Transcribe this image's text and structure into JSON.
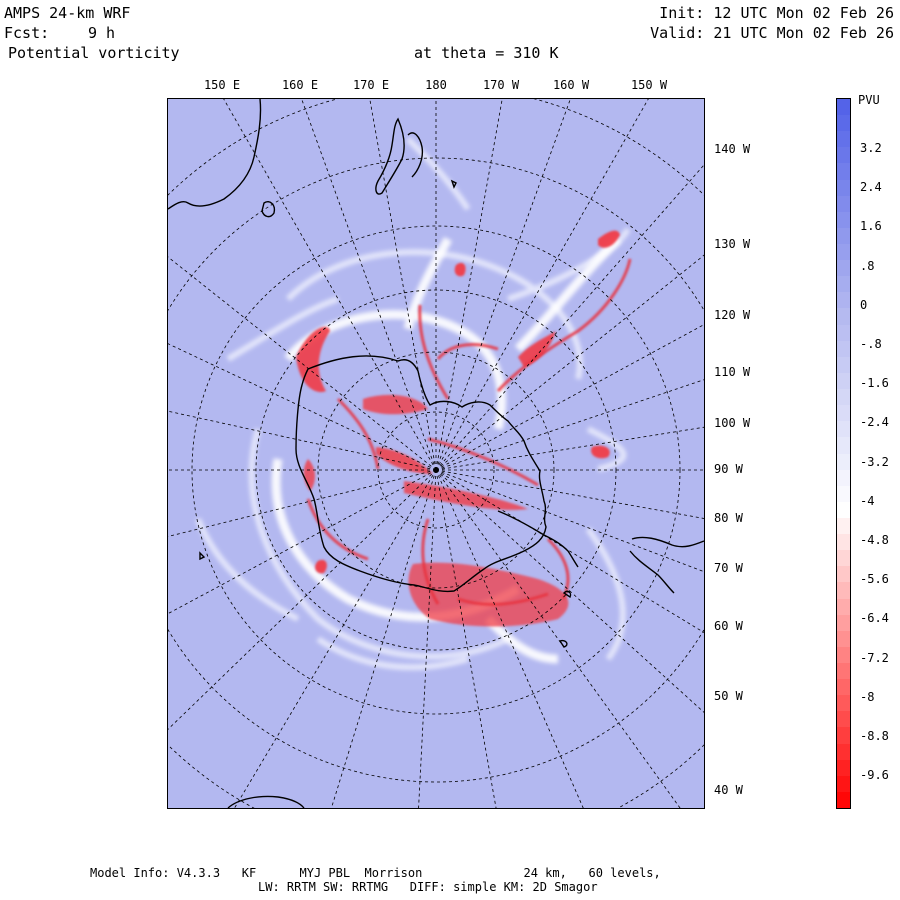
{
  "header": {
    "model": "AMPS 24-km WRF",
    "forecast_label": "Fcst:",
    "forecast_value": "9 h",
    "field": "Potential vorticity",
    "level": "at theta = 310 K",
    "init": "Init: 12 UTC Mon 02 Feb 26",
    "valid": "Valid: 21 UTC Mon 02 Feb 26"
  },
  "map": {
    "projection": "polar stereographic",
    "lon_labels": [
      "150 E",
      "160 E",
      "170 E",
      "180",
      "170 W",
      "160 W",
      "150 W"
    ],
    "lat_labels": [
      "140 W",
      "130 W",
      "120 W",
      "110 W",
      "100 W",
      "90 W",
      "80 W",
      "70 W",
      "60 W",
      "50 W",
      "40 W"
    ],
    "background_color": "#b3b8f0",
    "gridline_color": "#000000",
    "coastline_color": "#000000"
  },
  "colorbar": {
    "unit": "PVU",
    "labels": [
      "3.2",
      "2.4",
      "1.6",
      ".8",
      "0",
      "-.8",
      "-1.6",
      "-2.4",
      "-3.2",
      "-4",
      "-4.8",
      "-5.6",
      "-6.4",
      "-7.2",
      "-8",
      "-8.8",
      "-9.6"
    ],
    "colors": {
      "max_positive": "#5060e8",
      "zero": "#b3b8f0",
      "neutral": "#ffffff",
      "max_negative": "#ff0000"
    }
  },
  "footer": {
    "line1": "Model Info: V4.3.3   KF      MYJ PBL  Morrison              24 km,   60 levels,",
    "line2": "LW: RRTM SW: RRTMG   DIFF: simple KM: 2D Smagor"
  }
}
